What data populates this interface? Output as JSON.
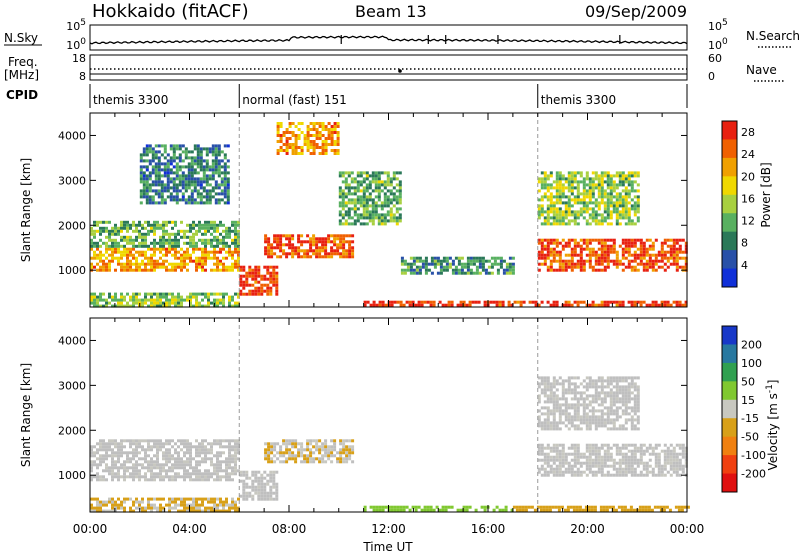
{
  "header": {
    "title_left": "Hokkaido (fitACF)",
    "title_center": "Beam 13",
    "title_right": "09/Sep/2009"
  },
  "noise_panel": {
    "left_label": "N.Sky",
    "right_label": "N.Search",
    "tick_top": "10^5",
    "tick_bottom": "10^0"
  },
  "freq_panel": {
    "left_label_1": "Freq.",
    "left_label_2": "[MHz]",
    "left_tick_top": "18",
    "left_tick_bottom": "8",
    "right_tick_top": "60",
    "right_tick_bottom": "0",
    "right_label": "Nave"
  },
  "cpid": {
    "label": "CPID",
    "segments": [
      {
        "start_hour": 0,
        "name": "themis 3300"
      },
      {
        "start_hour": 6,
        "name": "normal (fast) 151"
      },
      {
        "start_hour": 18,
        "name": "themis 3300"
      }
    ]
  },
  "colors": {
    "power_scale": [
      "#1030d8",
      "#2850a8",
      "#2a7858",
      "#58b060",
      "#a8d040",
      "#f0d800",
      "#f0a000",
      "#f06000",
      "#e82010"
    ],
    "velocity_scale": [
      "#1838c8",
      "#2878a0",
      "#30a050",
      "#80c830",
      "#c8c8c0",
      "#d8a018",
      "#f08010",
      "#f04010",
      "#e01010"
    ],
    "ground_scatter": "#bfbfbf"
  },
  "chart_data": [
    {
      "type": "heatmap",
      "title": "Power",
      "ylabel": "Slant Range [km]",
      "xlabel": "Time UT",
      "x_ticks": [
        "00:00",
        "04:00",
        "08:00",
        "12:00",
        "16:00",
        "20:00",
        "00:00"
      ],
      "x_range_hours": [
        0,
        24
      ],
      "y_ticks": [
        1000,
        2000,
        3000,
        4000
      ],
      "ylim": [
        180,
        4500
      ],
      "colorbar_label": "Power [dB]",
      "colorbar_ticks": [
        4,
        8,
        12,
        16,
        20,
        24,
        28
      ],
      "colorbar_range": [
        0,
        30
      ],
      "regions": [
        {
          "t0": 0.0,
          "t1": 6.0,
          "r0": 1000,
          "r1": 1500,
          "level": 22
        },
        {
          "t0": 0.0,
          "t1": 6.0,
          "r0": 1500,
          "r1": 2100,
          "level": 12
        },
        {
          "t0": 2.0,
          "t1": 5.5,
          "r0": 2500,
          "r1": 3800,
          "level": 8
        },
        {
          "t0": 0.0,
          "t1": 6.0,
          "r0": 200,
          "r1": 500,
          "level": 14
        },
        {
          "t0": 6.0,
          "t1": 7.5,
          "r0": 450,
          "r1": 1100,
          "level": 28
        },
        {
          "t0": 7.0,
          "t1": 10.5,
          "r0": 1300,
          "r1": 1800,
          "level": 26
        },
        {
          "t0": 7.5,
          "t1": 10.0,
          "r0": 3600,
          "r1": 4300,
          "level": 22
        },
        {
          "t0": 10.0,
          "t1": 12.5,
          "r0": 2000,
          "r1": 3200,
          "level": 12
        },
        {
          "t0": 11.0,
          "t1": 24.0,
          "r0": 200,
          "r1": 320,
          "level": 28
        },
        {
          "t0": 12.5,
          "t1": 17.0,
          "r0": 900,
          "r1": 1300,
          "level": 10
        },
        {
          "t0": 18.0,
          "t1": 24.0,
          "r0": 1000,
          "r1": 1700,
          "level": 26
        },
        {
          "t0": 18.0,
          "t1": 22.0,
          "r0": 2000,
          "r1": 3200,
          "level": 14
        }
      ]
    },
    {
      "type": "heatmap",
      "title": "Velocity",
      "ylabel": "Slant Range [km]",
      "xlabel": "Time UT",
      "x_ticks": [
        "00:00",
        "04:00",
        "08:00",
        "12:00",
        "16:00",
        "20:00",
        "00:00"
      ],
      "x_range_hours": [
        0,
        24
      ],
      "y_ticks": [
        1000,
        2000,
        3000,
        4000
      ],
      "ylim": [
        180,
        4500
      ],
      "colorbar_label": "Velocity [m s^-1]",
      "colorbar_ticks": [
        "200",
        "100",
        "50",
        "15",
        "-15",
        "-50",
        "-100",
        "-200"
      ],
      "colorbar_range": [
        -250,
        250
      ],
      "regions": [
        {
          "t0": 0.0,
          "t1": 6.0,
          "r0": 900,
          "r1": 1800,
          "level": 0
        },
        {
          "t0": 0.0,
          "t1": 6.0,
          "r0": 200,
          "r1": 500,
          "level": -30
        },
        {
          "t0": 6.0,
          "t1": 7.5,
          "r0": 450,
          "r1": 1100,
          "level": 0
        },
        {
          "t0": 7.0,
          "t1": 10.5,
          "r0": 1300,
          "r1": 1800,
          "level": -20
        },
        {
          "t0": 11.0,
          "t1": 17.0,
          "r0": 200,
          "r1": 320,
          "level": 60
        },
        {
          "t0": 17.0,
          "t1": 24.0,
          "r0": 200,
          "r1": 320,
          "level": -60
        },
        {
          "t0": 18.0,
          "t1": 24.0,
          "r0": 1000,
          "r1": 1700,
          "level": 0
        },
        {
          "t0": 18.0,
          "t1": 22.0,
          "r0": 2000,
          "r1": 3200,
          "level": 0
        }
      ]
    }
  ]
}
